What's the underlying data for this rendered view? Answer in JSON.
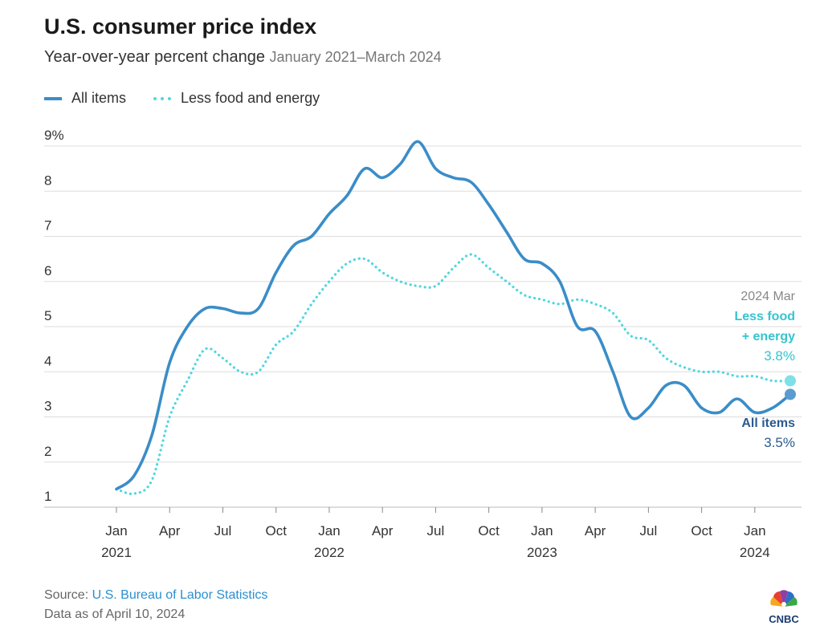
{
  "title": "U.S. consumer price index",
  "subtitle": "Year-over-year percent change",
  "subtitle_range": "January 2021–March 2024",
  "legend": [
    {
      "name": "All items",
      "style": "solid",
      "color": "#3a8dc8"
    },
    {
      "name": "Less food and energy",
      "style": "dotted",
      "color": "#4fd6e0"
    }
  ],
  "annotations": {
    "date": "2024 Mar",
    "core_label_1": "Less food",
    "core_label_2": "+ energy",
    "core_value": "3.8%",
    "all_label": "All items",
    "all_value": "3.5%"
  },
  "footer": {
    "source_prefix": "Source: ",
    "source_link": "U.S. Bureau of Labor Statistics",
    "data_as_of": "Data as of April 10, 2024"
  },
  "logo_text": "CNBC",
  "chart_data": {
    "type": "line",
    "title": "U.S. consumer price index",
    "ylabel": "Year-over-year percent change",
    "ylim": [
      1,
      9
    ],
    "yticks": [
      1,
      2,
      3,
      4,
      5,
      6,
      7,
      8,
      9
    ],
    "ytick_labels": [
      "1",
      "2",
      "3",
      "4",
      "5",
      "6",
      "7",
      "8",
      "9%"
    ],
    "x_range": [
      0,
      38
    ],
    "xticks": [
      {
        "x": 0,
        "month": "Jan",
        "year": "2021"
      },
      {
        "x": 3,
        "month": "Apr",
        "year": ""
      },
      {
        "x": 6,
        "month": "Jul",
        "year": ""
      },
      {
        "x": 9,
        "month": "Oct",
        "year": ""
      },
      {
        "x": 12,
        "month": "Jan",
        "year": "2022"
      },
      {
        "x": 15,
        "month": "Apr",
        "year": ""
      },
      {
        "x": 18,
        "month": "Jul",
        "year": ""
      },
      {
        "x": 21,
        "month": "Oct",
        "year": ""
      },
      {
        "x": 24,
        "month": "Jan",
        "year": "2023"
      },
      {
        "x": 27,
        "month": "Apr",
        "year": ""
      },
      {
        "x": 30,
        "month": "Jul",
        "year": ""
      },
      {
        "x": 33,
        "month": "Oct",
        "year": ""
      },
      {
        "x": 36,
        "month": "Jan",
        "year": "2024"
      }
    ],
    "series": [
      {
        "name": "All items",
        "color": "#3a8dc8",
        "values": [
          1.4,
          1.7,
          2.6,
          4.2,
          5.0,
          5.4,
          5.4,
          5.3,
          5.4,
          6.2,
          6.8,
          7.0,
          7.5,
          7.9,
          8.5,
          8.3,
          8.6,
          9.1,
          8.5,
          8.3,
          8.2,
          7.7,
          7.1,
          6.5,
          6.4,
          6.0,
          5.0,
          4.9,
          4.0,
          3.0,
          3.2,
          3.7,
          3.7,
          3.2,
          3.1,
          3.4,
          3.1,
          3.2,
          3.5
        ]
      },
      {
        "name": "Less food and energy",
        "color": "#4fd6e0",
        "values": [
          1.4,
          1.3,
          1.6,
          3.0,
          3.8,
          4.5,
          4.3,
          4.0,
          4.0,
          4.6,
          4.9,
          5.5,
          6.0,
          6.4,
          6.5,
          6.2,
          6.0,
          5.9,
          5.9,
          6.3,
          6.6,
          6.3,
          6.0,
          5.7,
          5.6,
          5.5,
          5.6,
          5.5,
          5.3,
          4.8,
          4.7,
          4.3,
          4.1,
          4.0,
          4.0,
          3.9,
          3.9,
          3.8,
          3.8
        ]
      }
    ],
    "end_labels": {
      "all_items": 3.5,
      "core": 3.8
    }
  }
}
